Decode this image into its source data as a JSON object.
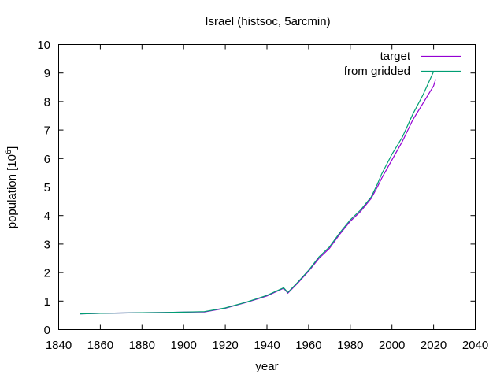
{
  "chart_data": {
    "type": "line",
    "title": "Israel (histsoc, 5arcmin)",
    "xlabel": "year",
    "ylabel": "population [10",
    "ylabel_exponent": "6",
    "ylabel_suffix": "]",
    "xlim": [
      1840,
      2040
    ],
    "ylim": [
      0,
      10
    ],
    "xticks": [
      1840,
      1860,
      1880,
      1900,
      1920,
      1940,
      1960,
      1980,
      2000,
      2020,
      2040
    ],
    "yticks": [
      0,
      1,
      2,
      3,
      4,
      5,
      6,
      7,
      8,
      9,
      10
    ],
    "grid": false,
    "legend_position": "top-right",
    "series": [
      {
        "name": "target",
        "color": "#9400d3",
        "x": [
          1850,
          1860,
          1870,
          1880,
          1890,
          1900,
          1910,
          1920,
          1930,
          1940,
          1948,
          1950,
          1955,
          1960,
          1965,
          1970,
          1975,
          1980,
          1985,
          1990,
          1993,
          1995,
          2000,
          2005,
          2010,
          2015,
          2020,
          2021
        ],
        "y": [
          0.55,
          0.57,
          0.58,
          0.59,
          0.6,
          0.61,
          0.62,
          0.75,
          0.95,
          1.18,
          1.45,
          1.28,
          1.65,
          2.05,
          2.5,
          2.85,
          3.35,
          3.8,
          4.15,
          4.6,
          5.0,
          5.3,
          5.95,
          6.6,
          7.35,
          7.95,
          8.55,
          8.78
        ]
      },
      {
        "name": "from gridded",
        "color": "#009e73",
        "x": [
          1850,
          1860,
          1870,
          1880,
          1890,
          1900,
          1910,
          1920,
          1930,
          1940,
          1948,
          1950,
          1955,
          1960,
          1965,
          1970,
          1975,
          1980,
          1985,
          1990,
          1993,
          1995,
          2000,
          2005,
          2010,
          2015,
          2020
        ],
        "y": [
          0.55,
          0.57,
          0.58,
          0.59,
          0.6,
          0.61,
          0.63,
          0.76,
          0.96,
          1.2,
          1.47,
          1.3,
          1.68,
          2.08,
          2.55,
          2.9,
          3.4,
          3.85,
          4.2,
          4.65,
          5.1,
          5.45,
          6.15,
          6.75,
          7.55,
          8.25,
          9.05
        ]
      }
    ]
  }
}
